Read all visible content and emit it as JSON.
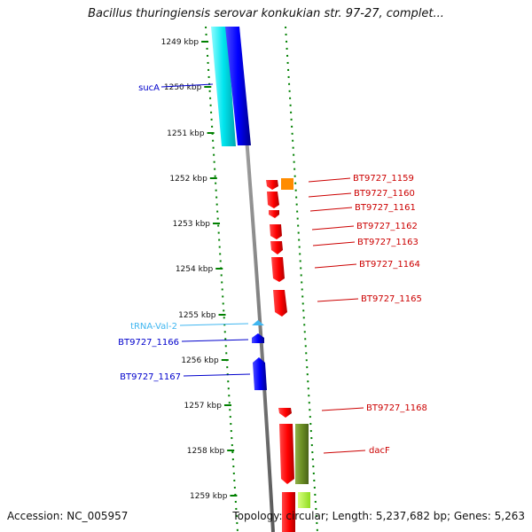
{
  "title": "Bacillus thuringiensis serovar konkukian str. 97-27, complet...",
  "footer": {
    "accession": "Accession: NC_005957",
    "summary": "Topology: circular; Length: 5,237,682 bp; Genes: 5,263"
  },
  "colors": {
    "forward_red": "#ff0000",
    "reverse_blue": "#0000ff",
    "cyan": "#00e5ee",
    "trna": "#3fb6f0",
    "orange": "#ff8c00",
    "olive": "#6b8e23",
    "lime": "#adff2f",
    "backbone": "#888888",
    "tick_green": "#008000"
  },
  "ticks": [
    "1249 kbp",
    "1250 kbp",
    "1251 kbp",
    "1252 kbp",
    "1253 kbp",
    "1254 kbp",
    "1255 kbp",
    "1256 kbp",
    "1257 kbp",
    "1258 kbp",
    "1259 kbp"
  ],
  "left_labels": [
    {
      "text": "sucA",
      "color": "#0000cc"
    },
    {
      "text": "tRNA-Val-2",
      "color": "#3fb6f0"
    },
    {
      "text": "BT9727_1166",
      "color": "#0000cc"
    },
    {
      "text": "BT9727_1167",
      "color": "#0000cc"
    }
  ],
  "right_labels": [
    {
      "text": "BT9727_1159",
      "color": "#cc0000"
    },
    {
      "text": "BT9727_1160",
      "color": "#cc0000"
    },
    {
      "text": "BT9727_1161",
      "color": "#cc0000"
    },
    {
      "text": "BT9727_1162",
      "color": "#cc0000"
    },
    {
      "text": "BT9727_1163",
      "color": "#cc0000"
    },
    {
      "text": "BT9727_1164",
      "color": "#cc0000"
    },
    {
      "text": "BT9727_1165",
      "color": "#cc0000"
    },
    {
      "text": "BT9727_1168",
      "color": "#cc0000"
    },
    {
      "text": "dacF",
      "color": "#cc0000"
    }
  ]
}
